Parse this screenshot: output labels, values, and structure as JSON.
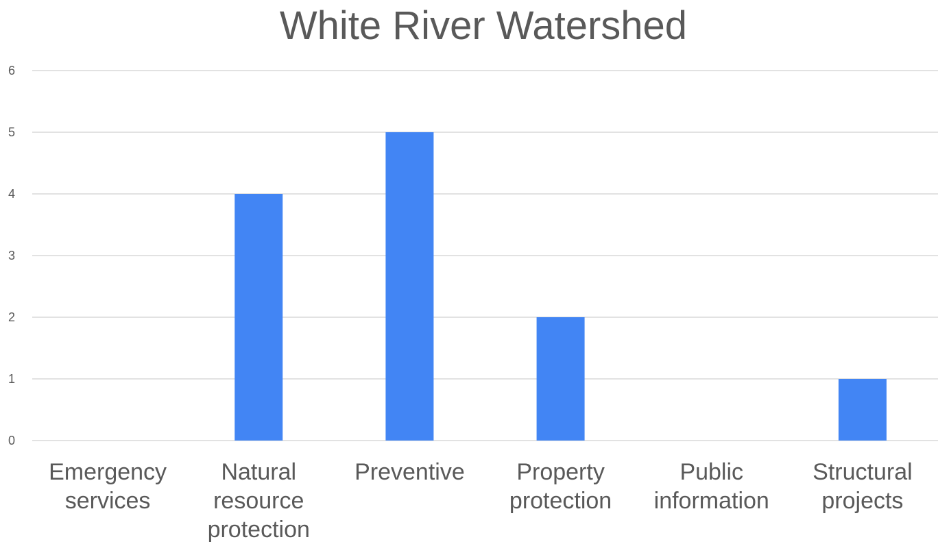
{
  "chart_data": {
    "type": "bar",
    "title": "White River Watershed",
    "categories": [
      [
        "Emergency",
        "services"
      ],
      [
        "Natural",
        "resource",
        "protection"
      ],
      [
        "Preventive"
      ],
      [
        "Property",
        "protection"
      ],
      [
        "Public",
        "information"
      ],
      [
        "Structural",
        "projects"
      ]
    ],
    "series": [
      {
        "values": [
          0,
          4,
          5,
          2,
          0,
          1
        ],
        "color": "#4285F4"
      }
    ],
    "ylim": [
      0,
      6
    ],
    "yticks": [
      0,
      1,
      2,
      3,
      4,
      5,
      6
    ],
    "xlabel": "",
    "ylabel": "",
    "grid": true,
    "legend": "none",
    "gridColor": "#d9d9d9",
    "textColor": "#595959"
  }
}
